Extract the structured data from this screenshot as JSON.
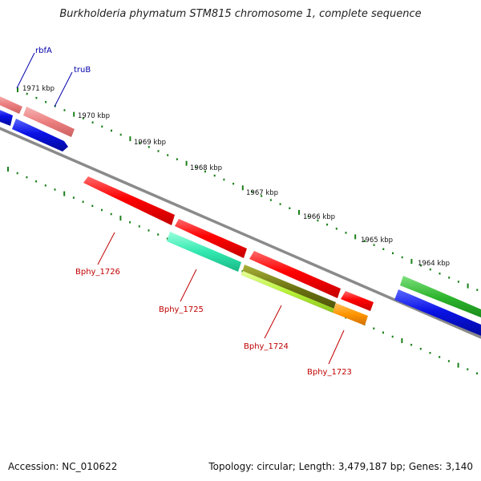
{
  "title": "Burkholderia phymatum STM815 chromosome 1, complete sequence",
  "footer": {
    "accession": "Accession: NC_010622",
    "topology": "Topology: circular; Length: 3,479,187 bp; Genes: 3,140"
  },
  "colors": {
    "backbone": "#808080",
    "tick": "#1a7f1a",
    "forward_gene": "#0a12e6",
    "reverse_gene": "#e80000",
    "label_blue": "#0000aa",
    "label_red": "#c00000"
  },
  "scale_labels": [
    "1971 kbp",
    "1970 kbp",
    "1969 kbp",
    "1968 kbp",
    "1967 kbp",
    "1966 kbp",
    "1965 kbp",
    "1964 kbp"
  ],
  "gene_labels": [
    {
      "name": "rbfA",
      "color": "label_blue"
    },
    {
      "name": "truB",
      "color": "label_blue"
    },
    {
      "name": "Bphy_1726",
      "color": "label_red"
    },
    {
      "name": "Bphy_1725",
      "color": "label_red"
    },
    {
      "name": "Bphy_1724",
      "color": "label_red"
    },
    {
      "name": "Bphy_1723",
      "color": "label_red"
    }
  ]
}
